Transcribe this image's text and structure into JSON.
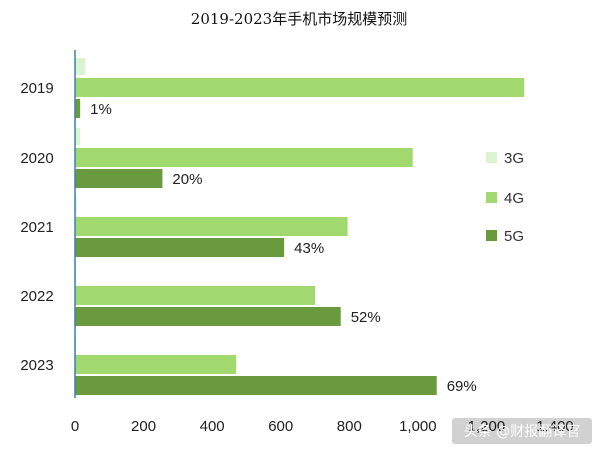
{
  "chart_data": {
    "type": "bar",
    "orientation": "horizontal",
    "title": "2019-2023年手机市场规模预测",
    "categories": [
      "2019",
      "2020",
      "2021",
      "2022",
      "2023"
    ],
    "series": [
      {
        "name": "3G",
        "color": "#dcf3d0",
        "values": [
          30,
          15,
          5,
          3,
          2
        ]
      },
      {
        "name": "4G",
        "color": "#a2d96f",
        "values": [
          1310,
          985,
          795,
          700,
          470
        ]
      },
      {
        "name": "5G",
        "color": "#6a9a3e",
        "values": [
          15,
          255,
          610,
          775,
          1055
        ]
      }
    ],
    "data_labels": [
      "1%",
      "20%",
      "43%",
      "52%",
      "69%"
    ],
    "x_ticks": [
      "0",
      "200",
      "400",
      "600",
      "800",
      "1,000",
      "1,200",
      "1,400"
    ],
    "xlim": [
      0,
      1400
    ],
    "grid": false,
    "legend_position": "right"
  },
  "watermark": "头条 @财报翻译官"
}
